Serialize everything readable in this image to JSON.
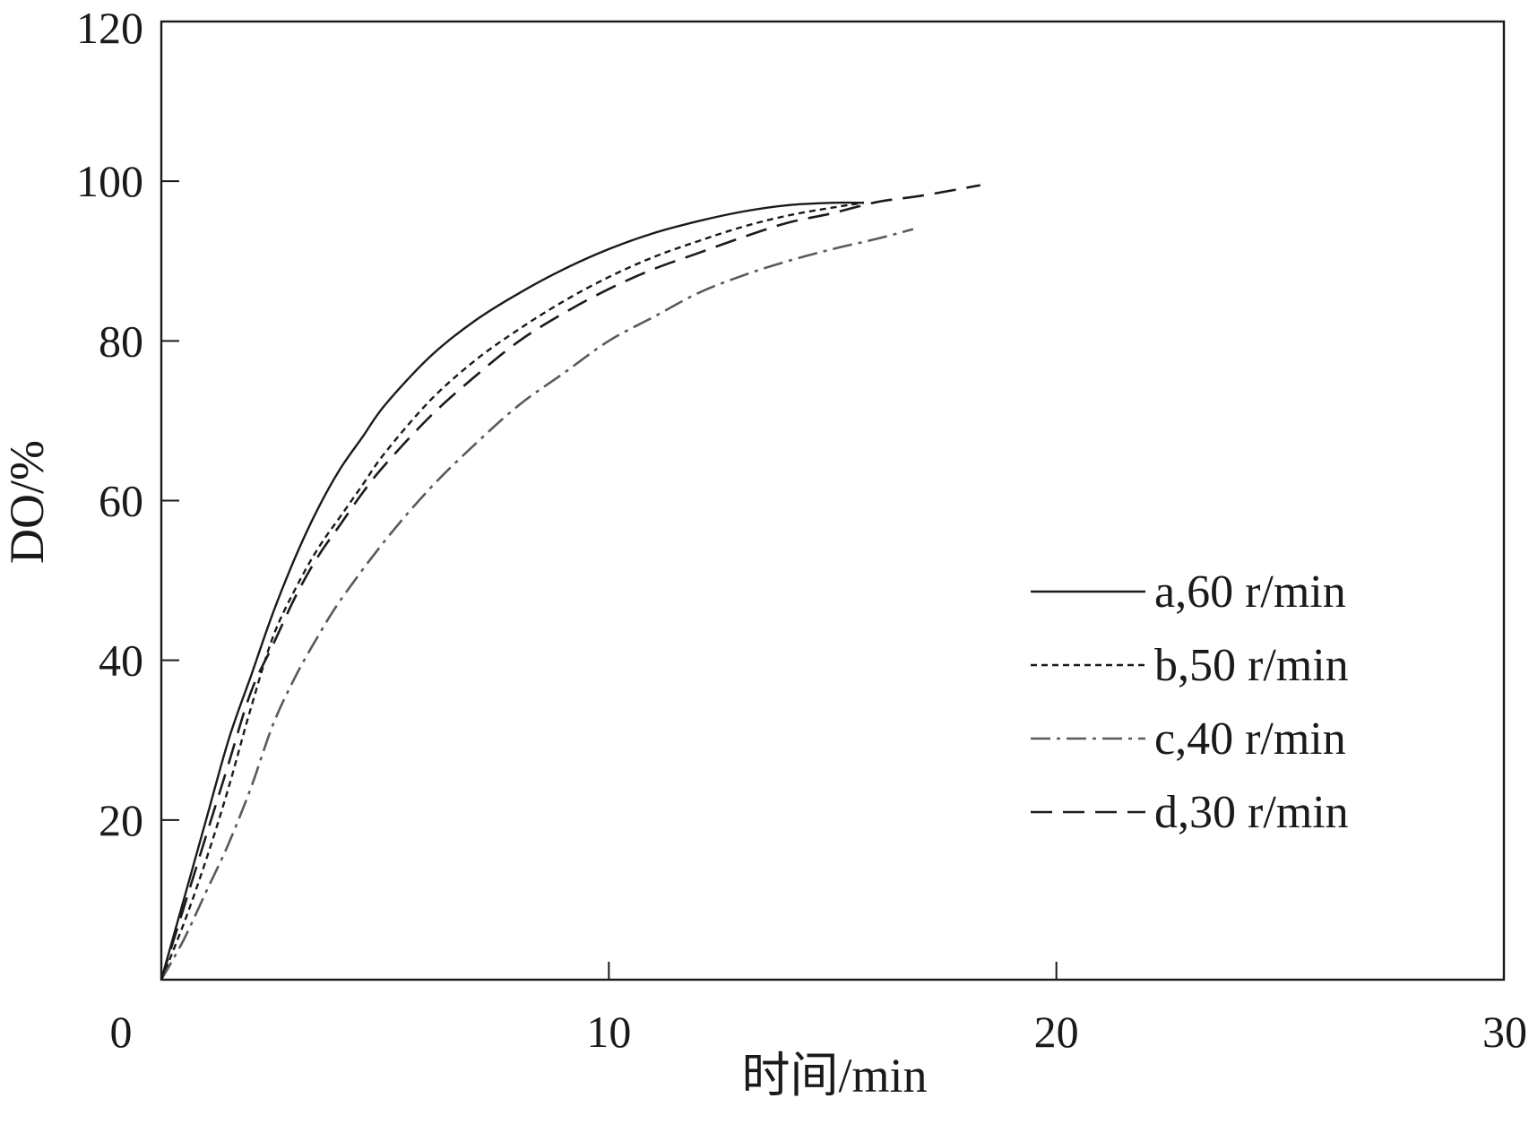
{
  "chart_data": {
    "type": "line",
    "title": "",
    "xlabel": "时间/min",
    "ylabel": "DO/%",
    "xlim": [
      0,
      30
    ],
    "ylim": [
      0,
      120
    ],
    "x_ticks": [
      0,
      10,
      20,
      30
    ],
    "y_ticks": [
      20,
      40,
      60,
      80,
      100,
      120
    ],
    "x_tick_labels": [
      "0",
      "10",
      "20",
      "30"
    ],
    "y_tick_labels": [
      "20",
      "40",
      "60",
      "80",
      "100",
      "120"
    ],
    "grid": false,
    "legend_position": "right",
    "series": [
      {
        "name": "a,60 r/min",
        "color": "#1a1a1a",
        "dash": "solid",
        "points": [
          [
            0,
            0
          ],
          [
            0.5,
            10
          ],
          [
            1,
            20
          ],
          [
            1.5,
            30
          ],
          [
            2,
            38
          ],
          [
            2.5,
            46
          ],
          [
            3,
            53
          ],
          [
            3.5,
            59
          ],
          [
            4,
            64
          ],
          [
            4.5,
            68
          ],
          [
            5,
            72
          ],
          [
            6,
            78
          ],
          [
            7,
            82.5
          ],
          [
            8,
            86
          ],
          [
            9,
            89
          ],
          [
            10,
            91.5
          ],
          [
            11,
            93.5
          ],
          [
            12,
            95
          ],
          [
            13,
            96.2
          ],
          [
            14,
            97
          ],
          [
            15,
            97.3
          ],
          [
            15.7,
            97.3
          ]
        ]
      },
      {
        "name": "b,50 r/min",
        "color": "#1a1a1a",
        "dash": "short-dash",
        "points": [
          [
            0,
            0
          ],
          [
            0.5,
            7
          ],
          [
            1,
            15
          ],
          [
            1.5,
            24
          ],
          [
            2,
            34
          ],
          [
            2.5,
            43
          ],
          [
            3,
            49
          ],
          [
            3.5,
            54
          ],
          [
            4,
            58
          ],
          [
            4.5,
            62
          ],
          [
            5,
            66
          ],
          [
            6,
            72.5
          ],
          [
            7,
            77.5
          ],
          [
            8,
            81.5
          ],
          [
            9,
            85
          ],
          [
            10,
            88
          ],
          [
            11,
            90.5
          ],
          [
            12,
            92.5
          ],
          [
            13,
            94.3
          ],
          [
            14,
            95.7
          ],
          [
            15,
            96.7
          ],
          [
            15.7,
            97.3
          ]
        ]
      },
      {
        "name": "c,40 r/min",
        "color": "#5a5a5a",
        "dash": "dash-dot",
        "points": [
          [
            0,
            0
          ],
          [
            0.5,
            5
          ],
          [
            1,
            11
          ],
          [
            1.5,
            17
          ],
          [
            2,
            24
          ],
          [
            2.5,
            32
          ],
          [
            3,
            38
          ],
          [
            3.5,
            43
          ],
          [
            4,
            47.5
          ],
          [
            5,
            55
          ],
          [
            6,
            61.5
          ],
          [
            7,
            67
          ],
          [
            8,
            72
          ],
          [
            9,
            76
          ],
          [
            10,
            80
          ],
          [
            11,
            83
          ],
          [
            12,
            86
          ],
          [
            13,
            88.2
          ],
          [
            14,
            90
          ],
          [
            15,
            91.5
          ],
          [
            16,
            92.8
          ],
          [
            16.8,
            94
          ]
        ]
      },
      {
        "name": "d,30 r/min",
        "color": "#1a1a1a",
        "dash": "long-dash",
        "points": [
          [
            0,
            0
          ],
          [
            0.5,
            9
          ],
          [
            1,
            18
          ],
          [
            1.5,
            27
          ],
          [
            2,
            36
          ],
          [
            2.5,
            42
          ],
          [
            3,
            48
          ],
          [
            3.5,
            53
          ],
          [
            4,
            57
          ],
          [
            4.5,
            61
          ],
          [
            5,
            64.5
          ],
          [
            6,
            70.5
          ],
          [
            7,
            75.5
          ],
          [
            8,
            80
          ],
          [
            9,
            83.5
          ],
          [
            10,
            86.5
          ],
          [
            11,
            89
          ],
          [
            12,
            91
          ],
          [
            13,
            93
          ],
          [
            14,
            94.8
          ],
          [
            15,
            96
          ],
          [
            16,
            97.4
          ],
          [
            17,
            98.2
          ],
          [
            18.3,
            99.5
          ]
        ]
      }
    ]
  }
}
